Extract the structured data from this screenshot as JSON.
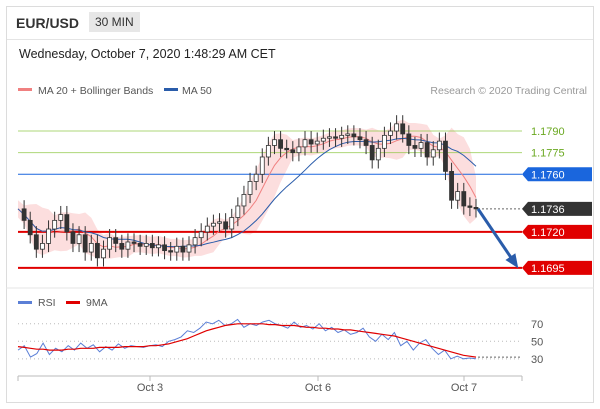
{
  "header": {
    "symbol": "EUR/USD",
    "timeframe": "30 MIN"
  },
  "datetime": "Wednesday, October 7, 2020 1:48:29 AM CET",
  "legend": {
    "items": [
      {
        "label": "MA 20 + Bollinger Bands",
        "color": "#f08080"
      },
      {
        "label": "MA 50",
        "color": "#2a5caa"
      }
    ],
    "credit": "Research © 2020 Trading Central"
  },
  "chart_data": [
    {
      "type": "candlestick",
      "x_ticks": [
        "Oct 3",
        "Oct 6",
        "Oct 7"
      ],
      "ylim": [
        1.1688,
        1.1806
      ],
      "levels": [
        {
          "value": 1.179,
          "label": "1.1790",
          "kind": "resistance-2",
          "color": "#8cc63f"
        },
        {
          "value": 1.1775,
          "label": "1.1775",
          "kind": "resistance-1",
          "color": "#8cc63f"
        },
        {
          "value": 1.176,
          "label": "1.1760",
          "kind": "pivot",
          "color": "#1a66dd"
        },
        {
          "value": 1.1736,
          "label": "1.1736",
          "kind": "last-price",
          "color": "#333333"
        },
        {
          "value": 1.172,
          "label": "1.1720",
          "kind": "support-1",
          "color": "#e00000"
        },
        {
          "value": 1.1695,
          "label": "1.1695",
          "kind": "support-2",
          "color": "#e00000"
        }
      ],
      "forecast_arrow": {
        "from": 1.1736,
        "to": 1.1695,
        "direction": "down",
        "color": "#2a5caa"
      },
      "price": [
        1.1736,
        1.1728,
        1.1718,
        1.1708,
        1.1712,
        1.1722,
        1.1728,
        1.1732,
        1.172,
        1.1712,
        1.1718,
        1.1706,
        1.1712,
        1.1702,
        1.1708,
        1.1716,
        1.1712,
        1.1708,
        1.1713,
        1.1712,
        1.171,
        1.1712,
        1.1709,
        1.1711,
        1.1707,
        1.1706,
        1.171,
        1.1706,
        1.1711,
        1.1716,
        1.172,
        1.1724,
        1.1726,
        1.1727,
        1.1722,
        1.173,
        1.1738,
        1.1746,
        1.1755,
        1.176,
        1.1772,
        1.178,
        1.1784,
        1.1778,
        1.1777,
        1.1775,
        1.1779,
        1.1784,
        1.1781,
        1.1783,
        1.1785,
        1.1786,
        1.1785,
        1.1787,
        1.1788,
        1.1786,
        1.1784,
        1.178,
        1.177,
        1.1778,
        1.1787,
        1.179,
        1.1795,
        1.1788,
        1.178,
        1.1778,
        1.1782,
        1.1772,
        1.1777,
        1.1783,
        1.1762,
        1.1742,
        1.1748,
        1.1738,
        1.1737,
        1.1736
      ]
    },
    {
      "type": "line",
      "yticks": [
        70,
        50,
        30
      ],
      "ylim": [
        15,
        80
      ],
      "series": [
        {
          "name": "RSI",
          "color": "#5b7fd6",
          "values": [
            40,
            45,
            32,
            36,
            48,
            35,
            42,
            38,
            45,
            40,
            48,
            42,
            46,
            38,
            44,
            40,
            47,
            42,
            45,
            44,
            43,
            45,
            46,
            44,
            50,
            52,
            55,
            62,
            60,
            65,
            72,
            70,
            74,
            68,
            70,
            75,
            66,
            70,
            68,
            72,
            74,
            70,
            68,
            65,
            72,
            66,
            68,
            64,
            70,
            62,
            66,
            60,
            63,
            58,
            60,
            65,
            55,
            50,
            58,
            52,
            60,
            45,
            50,
            40,
            48,
            52,
            42,
            35,
            40,
            30,
            33,
            30,
            31,
            30
          ]
        },
        {
          "name": "9MA",
          "color": "#e00000",
          "values": [
            44,
            43,
            42,
            41,
            41,
            40,
            40,
            40,
            41,
            41,
            42,
            42,
            42,
            43,
            43,
            43,
            43,
            44,
            44,
            44,
            44,
            45,
            45,
            46,
            47,
            49,
            51,
            53,
            56,
            59,
            62,
            64,
            66,
            68,
            69,
            70,
            70,
            70,
            70,
            70,
            69,
            69,
            68,
            68,
            68,
            67,
            66,
            66,
            65,
            65,
            64,
            64,
            63,
            63,
            62,
            61,
            60,
            59,
            58,
            57,
            56,
            54,
            52,
            50,
            48,
            46,
            44,
            42,
            40,
            38,
            36,
            34,
            33,
            32
          ]
        }
      ]
    }
  ]
}
